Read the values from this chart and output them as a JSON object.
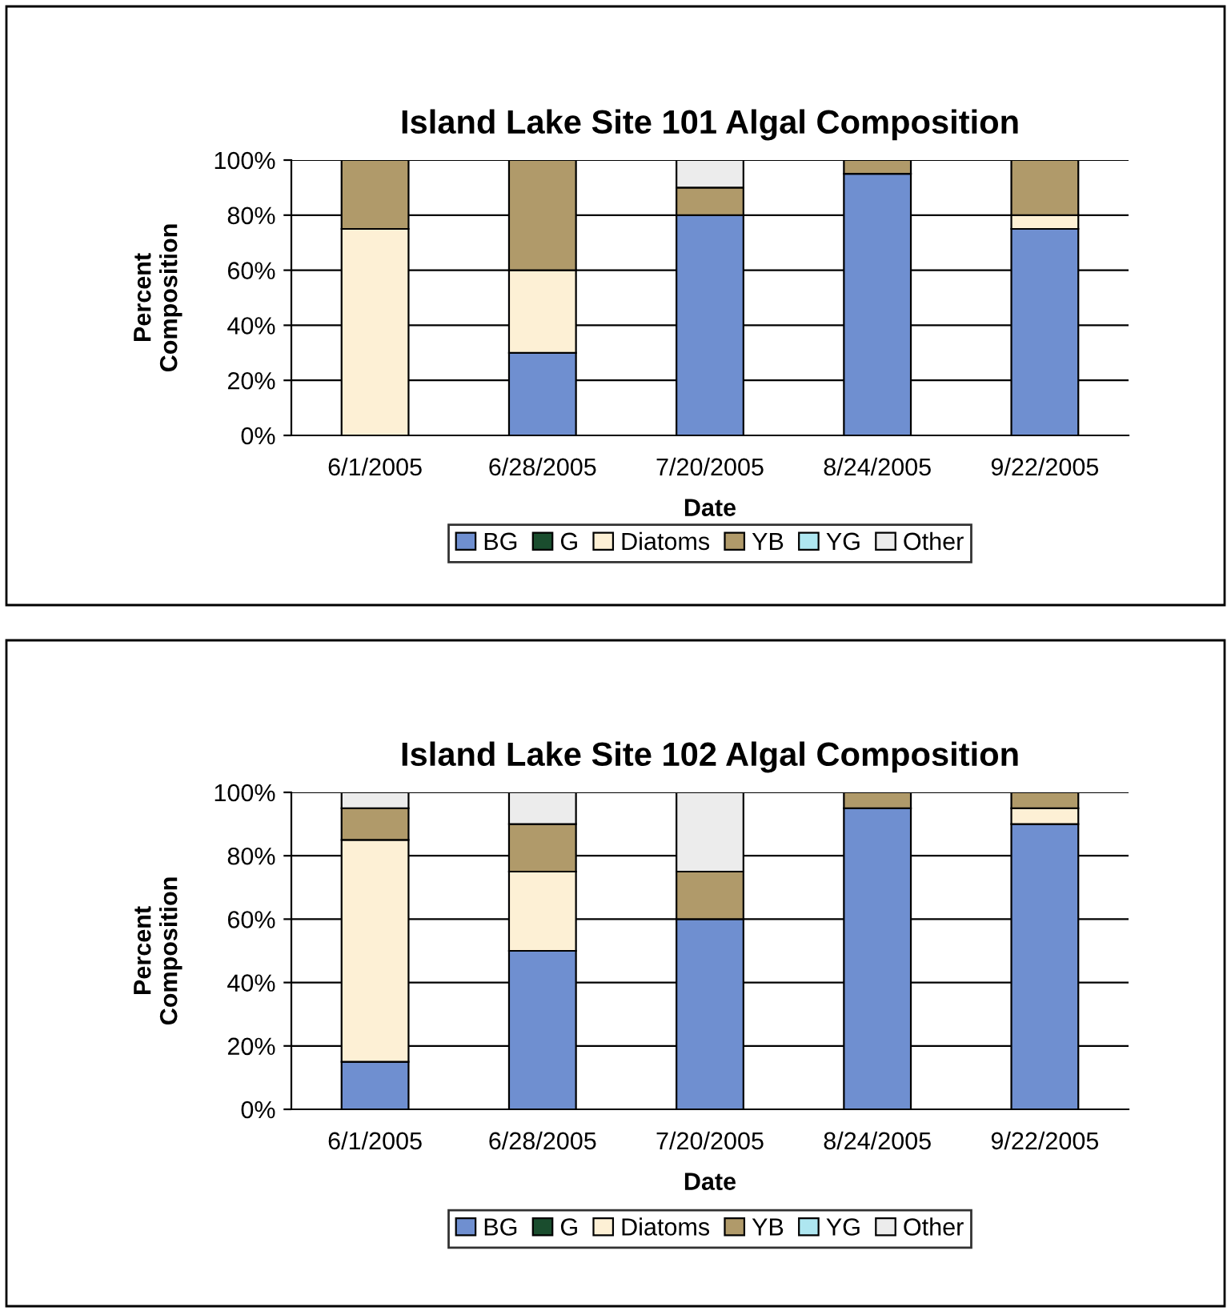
{
  "chart_data": [
    {
      "type": "bar",
      "title": "Island Lake Site 101 Algal Composition",
      "xlabel": "Date",
      "ylabel": "Percent\nComposition",
      "stacked": true,
      "grid": "y",
      "legend": "bottom",
      "categories": [
        "6/1/2005",
        "6/28/2005",
        "7/20/2005",
        "8/24/2005",
        "9/22/2005"
      ],
      "ylim": [
        0,
        100
      ],
      "yticks": [
        {
          "value": 0,
          "label": "0%"
        },
        {
          "value": 20,
          "label": "20%"
        },
        {
          "value": 40,
          "label": "40%"
        },
        {
          "value": 60,
          "label": "60%"
        },
        {
          "value": 80,
          "label": "80%"
        },
        {
          "value": 100,
          "label": "100%"
        }
      ],
      "series": [
        {
          "name": "BG",
          "color": "#6f8fd0",
          "values": [
            0,
            30,
            80,
            95,
            75
          ]
        },
        {
          "name": "G",
          "color": "#1a4d2e",
          "values": [
            0,
            0,
            0,
            0,
            0
          ]
        },
        {
          "name": "Diatoms",
          "color": "#fdf0d5",
          "values": [
            75,
            30,
            0,
            0,
            5
          ]
        },
        {
          "name": "YB",
          "color": "#b09a6a",
          "values": [
            25,
            40,
            10,
            5,
            20
          ]
        },
        {
          "name": "YG",
          "color": "#aee6f0",
          "values": [
            0,
            0,
            0,
            0,
            0
          ]
        },
        {
          "name": "Other",
          "color": "#ececec",
          "values": [
            0,
            0,
            10,
            0,
            0
          ]
        }
      ]
    },
    {
      "type": "bar",
      "title": "Island Lake Site 102 Algal Composition",
      "xlabel": "Date",
      "ylabel": "Percent\nComposition",
      "stacked": true,
      "grid": "y",
      "legend": "bottom",
      "categories": [
        "6/1/2005",
        "6/28/2005",
        "7/20/2005",
        "8/24/2005",
        "9/22/2005"
      ],
      "ylim": [
        0,
        100
      ],
      "yticks": [
        {
          "value": 0,
          "label": "0%"
        },
        {
          "value": 20,
          "label": "20%"
        },
        {
          "value": 40,
          "label": "40%"
        },
        {
          "value": 60,
          "label": "60%"
        },
        {
          "value": 80,
          "label": "80%"
        },
        {
          "value": 100,
          "label": "100%"
        }
      ],
      "series": [
        {
          "name": "BG",
          "color": "#6f8fd0",
          "values": [
            15,
            50,
            60,
            95,
            90
          ]
        },
        {
          "name": "G",
          "color": "#1a4d2e",
          "values": [
            0,
            0,
            0,
            0,
            0
          ]
        },
        {
          "name": "Diatoms",
          "color": "#fdf0d5",
          "values": [
            70,
            25,
            0,
            0,
            5
          ]
        },
        {
          "name": "YB",
          "color": "#b09a6a",
          "values": [
            10,
            15,
            15,
            5,
            5
          ]
        },
        {
          "name": "YG",
          "color": "#aee6f0",
          "values": [
            0,
            0,
            0,
            0,
            0
          ]
        },
        {
          "name": "Other",
          "color": "#ececec",
          "values": [
            5,
            10,
            25,
            0,
            0
          ]
        }
      ]
    }
  ]
}
